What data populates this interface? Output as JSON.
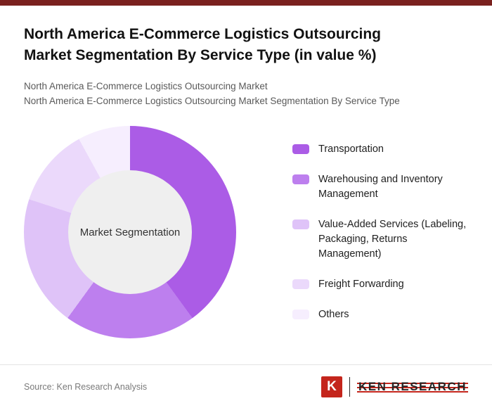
{
  "theme": {
    "top_bar_color": "#7a211e",
    "brand_red": "#c4251c",
    "center_circle_color": "#efefef"
  },
  "header": {
    "title_lines": [
      "North America E-Commerce Logistics Outsourcing",
      "Market Segmentation By Service Type (in value %)"
    ],
    "subtitle_lines": [
      "North America E-Commerce Logistics Outsourcing Market",
      "North America E-Commerce Logistics Outsourcing Market Segmentation By Service Type"
    ]
  },
  "chart_data": {
    "type": "pie",
    "subtype": "donut",
    "title": "North America E-Commerce Logistics Outsourcing Market Segmentation By Service Type (in value %)",
    "center_label": "Market Segmentation",
    "categories": [
      "Transportation",
      "Warehousing and Inventory Management",
      "Value-Added Services (Labeling, Packaging, Returns Management)",
      "Freight Forwarding",
      "Others"
    ],
    "values": [
      40,
      20,
      20,
      12,
      8
    ],
    "colors": [
      "#ab5ce6",
      "#bd7fee",
      "#dfc3f8",
      "#ebd9fb",
      "#f6eefe"
    ],
    "legend_position": "right",
    "start_angle_deg": 0,
    "direction": "clockwise"
  },
  "footer": {
    "source": "Source: Ken Research Analysis",
    "logo_letter": "K",
    "logo_text": "KEN RESEARCH"
  }
}
